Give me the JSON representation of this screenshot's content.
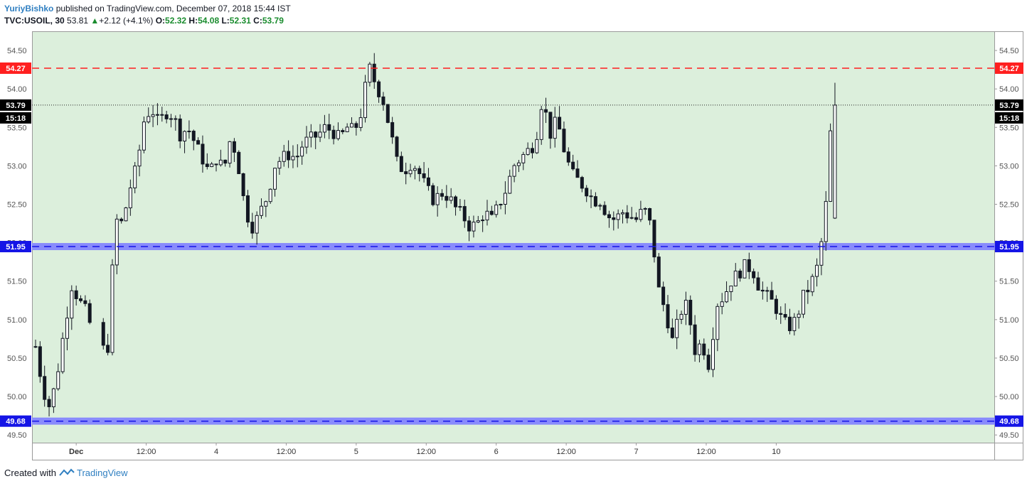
{
  "header": {
    "author": "YuriyBishko",
    "published_text": "published on TradingView.com, December 07, 2018 15:44 IST",
    "symbol": "TVC:USOIL, 30",
    "last": "53.81",
    "change_arrow": "▲",
    "change": "+2.12 (+4.1%)",
    "o_label": "O:",
    "o_value": "52.32",
    "h_label": "H:",
    "h_value": "54.08",
    "l_label": "L:",
    "l_value": "52.31",
    "c_label": "C:",
    "c_value": "53.79"
  },
  "footer": {
    "created_with": "Created with",
    "brand": "TradingView"
  },
  "colors": {
    "plot_bg": "#dcefdc",
    "candle": "#131722",
    "resistance": "#ff1f1f",
    "support": "#1515e6",
    "support_band": "#8080ff",
    "text_green": "#1a8c2e",
    "brand_blue": "#2f7fc1"
  },
  "chart_data": {
    "type": "candlestick",
    "ylim": [
      49.4,
      54.75
    ],
    "y_ticks": [
      "49.50",
      "50.00",
      "50.50",
      "51.00",
      "51.50",
      "52.00",
      "52.50",
      "53.00",
      "53.50",
      "54.00",
      "54.50"
    ],
    "x_ticks": [
      "Dec",
      "12:00",
      "4",
      "12:00",
      "5",
      "12:00",
      "6",
      "12:00",
      "7",
      "12:00",
      "10"
    ],
    "x_tick_index": [
      9,
      24.5,
      40,
      55.5,
      71,
      86.5,
      102,
      117.5,
      133,
      148.5,
      164
    ],
    "bar_count": 178,
    "horizontal_lines": [
      {
        "value": 54.27,
        "label": "54.27",
        "style": "dashed",
        "color": "#ff1f1f",
        "band": false
      },
      {
        "value": 51.95,
        "label": "51.95",
        "style": "dashed",
        "color": "#1515e6",
        "band": true
      },
      {
        "value": 49.68,
        "label": "49.68",
        "style": "dashed",
        "color": "#1515e6",
        "band": true
      }
    ],
    "last_price": {
      "value": 53.79,
      "label": "53.79",
      "countdown": "15:18"
    },
    "anchors": [
      [
        0,
        50.65
      ],
      [
        1,
        50.1
      ],
      [
        2,
        49.85
      ],
      [
        3,
        50.3
      ],
      [
        4,
        50.9
      ],
      [
        5,
        51.45
      ],
      [
        6,
        51.25
      ],
      [
        7,
        51.1
      ],
      [
        8,
        50.8
      ],
      [
        9,
        50.6
      ],
      [
        10,
        50.65
      ],
      [
        11,
        52.3
      ],
      [
        12,
        52.25
      ],
      [
        13,
        52.7
      ],
      [
        14,
        53.0
      ],
      [
        15,
        53.6
      ],
      [
        16,
        53.75
      ],
      [
        17,
        53.55
      ],
      [
        18,
        53.7
      ],
      [
        19,
        53.65
      ],
      [
        20,
        53.4
      ],
      [
        21,
        53.5
      ],
      [
        22,
        53.3
      ],
      [
        23,
        53.1
      ],
      [
        24,
        52.9
      ],
      [
        25,
        53.1
      ],
      [
        26,
        52.95
      ],
      [
        27,
        53.4
      ],
      [
        28,
        53.0
      ],
      [
        29,
        52.4
      ],
      [
        30,
        52.2
      ],
      [
        31,
        52.4
      ],
      [
        32,
        52.6
      ],
      [
        33,
        53.0
      ],
      [
        34,
        53.1
      ],
      [
        35,
        53.15
      ],
      [
        36,
        53.1
      ],
      [
        37,
        53.3
      ],
      [
        38,
        53.35
      ],
      [
        39,
        53.4
      ],
      [
        40,
        53.5
      ],
      [
        41,
        53.45
      ],
      [
        42,
        53.35
      ],
      [
        43,
        53.5
      ],
      [
        44,
        53.45
      ],
      [
        45,
        53.7
      ],
      [
        46,
        54.3
      ],
      [
        47,
        54.05
      ],
      [
        48,
        53.85
      ],
      [
        49,
        53.45
      ],
      [
        50,
        53.0
      ],
      [
        51,
        52.95
      ],
      [
        52,
        53.05
      ],
      [
        53,
        52.9
      ],
      [
        54,
        52.7
      ],
      [
        55,
        52.55
      ],
      [
        56,
        52.65
      ],
      [
        57,
        52.6
      ],
      [
        58,
        52.45
      ],
      [
        59,
        52.35
      ],
      [
        60,
        52.2
      ],
      [
        61,
        52.25
      ],
      [
        62,
        52.4
      ],
      [
        63,
        52.3
      ],
      [
        64,
        52.5
      ],
      [
        65,
        52.7
      ],
      [
        66,
        53.0
      ],
      [
        67,
        53.1
      ],
      [
        68,
        53.2
      ],
      [
        69,
        53.3
      ],
      [
        70,
        53.9
      ],
      [
        71,
        53.4
      ],
      [
        72,
        53.6
      ],
      [
        73,
        53.2
      ],
      [
        74,
        52.9
      ],
      [
        75,
        52.8
      ],
      [
        76,
        52.7
      ],
      [
        77,
        52.55
      ],
      [
        78,
        52.55
      ],
      [
        79,
        52.35
      ],
      [
        80,
        52.3
      ],
      [
        81,
        52.4
      ],
      [
        82,
        52.35
      ],
      [
        83,
        52.3
      ],
      [
        84,
        52.45
      ],
      [
        85,
        52.2
      ],
      [
        86,
        51.4
      ],
      [
        87,
        51.1
      ],
      [
        88,
        50.7
      ],
      [
        89,
        51.1
      ],
      [
        90,
        51.2
      ],
      [
        91,
        50.6
      ],
      [
        92,
        50.7
      ],
      [
        93,
        50.4
      ],
      [
        94,
        51.2
      ],
      [
        95,
        51.3
      ],
      [
        96,
        51.5
      ],
      [
        97,
        51.6
      ],
      [
        98,
        51.7
      ],
      [
        99,
        51.65
      ],
      [
        100,
        51.4
      ],
      [
        101,
        51.3
      ],
      [
        102,
        51.2
      ],
      [
        103,
        51.0
      ],
      [
        104,
        50.9
      ],
      [
        105,
        51.0
      ],
      [
        106,
        51.3
      ],
      [
        107,
        51.45
      ],
      [
        108,
        51.7
      ],
      [
        109,
        52.3
      ],
      [
        110,
        53.79
      ]
    ]
  }
}
